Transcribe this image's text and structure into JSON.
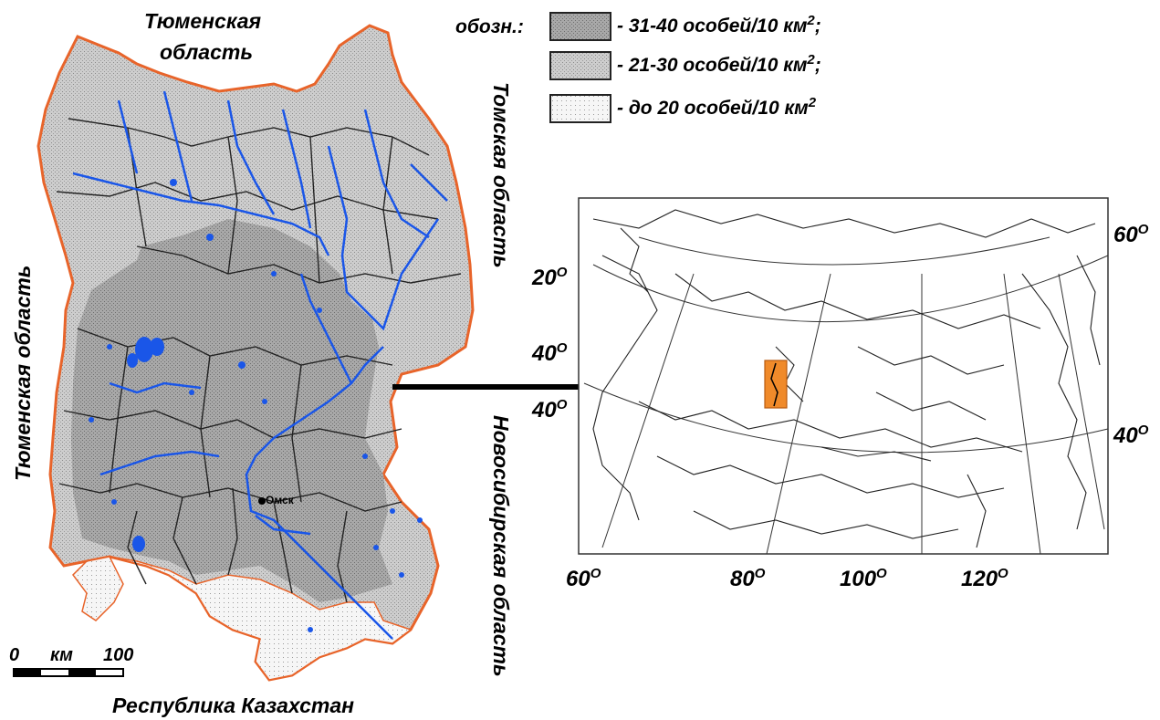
{
  "colors": {
    "water": "#1a56e8",
    "dense_fill": "#9c9c9c",
    "medium_fill": "#c8c8c8",
    "light_fill": "#f2f2f2",
    "boundary": "#e8642a",
    "highlight": "#f08a2a"
  },
  "regions": {
    "top": "Тюменская",
    "top2": "область",
    "left": "Тюменская область",
    "right_top": "Томская область",
    "right_bottom": "Новосибирская область",
    "bottom": "Республика Казахстан"
  },
  "city": {
    "name": "Омск"
  },
  "legend": {
    "title": "обозн.:",
    "items": [
      {
        "text": "- 31-40 особей/10 км",
        "sup": "2",
        "suffix": ";",
        "fill": "dense"
      },
      {
        "text": "- 21-30 особей/10 км",
        "sup": "2",
        "suffix": ";",
        "fill": "medium"
      },
      {
        "text": "- до 20 особей/10 км",
        "sup": "2",
        "suffix": "",
        "fill": "light"
      }
    ]
  },
  "scale": {
    "start": "0",
    "unit": "км",
    "end": "100"
  },
  "inset": {
    "lat_labels": [
      "20",
      "40",
      "40",
      "60",
      "40"
    ],
    "lon_labels": [
      "60",
      "80",
      "100",
      "120"
    ],
    "degree": "O"
  }
}
